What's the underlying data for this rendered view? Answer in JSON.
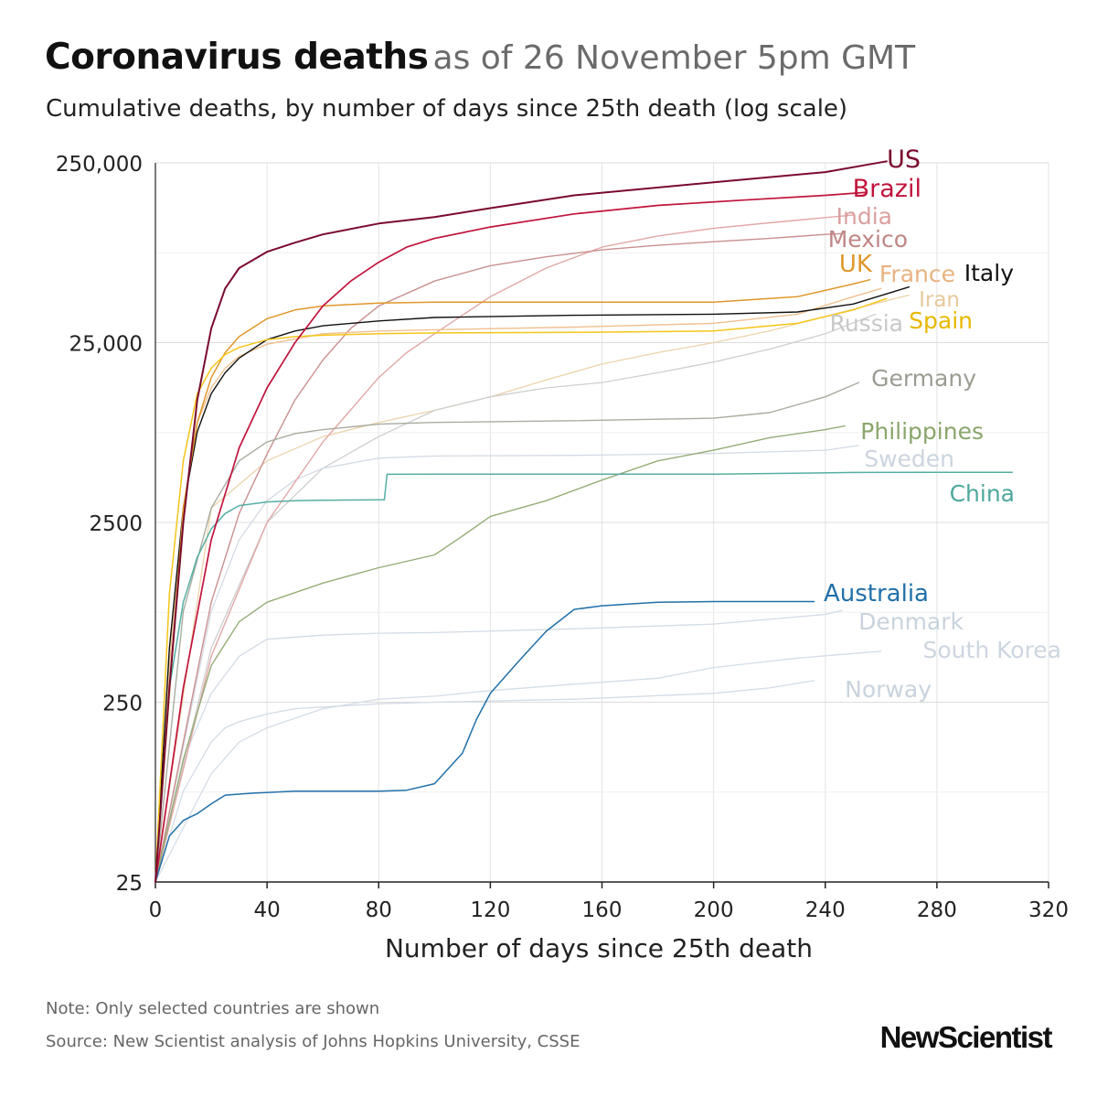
{
  "header": {
    "title_bold": "Coronavirus deaths",
    "title_light": "as of 26 November 5pm GMT",
    "subtitle": "Cumulative deaths, by number of days since 25th death (log scale)"
  },
  "footer": {
    "note": "Note: Only selected countries are shown",
    "source": "Source: New Scientist analysis of Johns Hopkins University, CSSE",
    "logo": "NewScientist"
  },
  "chart_data": {
    "type": "line",
    "title": "Coronavirus deaths as of 26 November 5pm GMT",
    "subtitle": "Cumulative deaths, by number of days since 25th death (log scale)",
    "xlabel": "Number of days since 25th death",
    "ylabel": "",
    "xscale": "linear",
    "yscale": "log",
    "xlim": [
      0,
      320
    ],
    "ylim": [
      25,
      250000
    ],
    "x_ticks": [
      0,
      40,
      80,
      120,
      160,
      200,
      240,
      280,
      320
    ],
    "x_tick_labels": [
      "0",
      "40",
      "80",
      "120",
      "160",
      "200",
      "240",
      "280",
      "320"
    ],
    "y_ticks": [
      25,
      250,
      2500,
      25000,
      250000
    ],
    "y_tick_labels": [
      "25",
      "250",
      "2500",
      "25,000",
      "250,000"
    ],
    "grid": true,
    "series": [
      {
        "name": "US",
        "color": "#7a0a2d",
        "label_color": "#7a0a2d",
        "weight": 2,
        "x": [
          0,
          5,
          10,
          15,
          20,
          25,
          30,
          40,
          50,
          60,
          80,
          100,
          120,
          150,
          200,
          240,
          262
        ],
        "y": [
          25,
          300,
          2500,
          12000,
          30000,
          50000,
          65000,
          80000,
          90000,
          100000,
          115000,
          125000,
          140000,
          165000,
          195000,
          222000,
          255000
        ]
      },
      {
        "name": "Brazil",
        "color": "#c0143c",
        "label_color": "#c0143c",
        "weight": 1.7,
        "x": [
          0,
          10,
          20,
          30,
          40,
          50,
          60,
          70,
          80,
          90,
          100,
          120,
          150,
          180,
          210,
          240,
          254
        ],
        "y": [
          25,
          300,
          2000,
          6500,
          14000,
          25000,
          40000,
          55000,
          70000,
          85000,
          95000,
          110000,
          130000,
          145000,
          155000,
          165000,
          171000
        ]
      },
      {
        "name": "India",
        "color": "#e2a7a7",
        "label_color": "#dba0a0",
        "weight": 1.4,
        "x": [
          0,
          20,
          40,
          60,
          80,
          90,
          100,
          120,
          140,
          160,
          180,
          200,
          220,
          240,
          250
        ],
        "y": [
          25,
          450,
          2500,
          7000,
          16000,
          22000,
          28000,
          45000,
          65000,
          85000,
          98000,
          108000,
          116000,
          124000,
          128000
        ]
      },
      {
        "name": "Mexico",
        "color": "#c98f8f",
        "label_color": "#c08585",
        "weight": 1.4,
        "x": [
          0,
          20,
          30,
          40,
          50,
          60,
          70,
          80,
          100,
          120,
          140,
          160,
          180,
          200,
          220,
          240,
          246
        ],
        "y": [
          25,
          900,
          2800,
          6000,
          12000,
          20000,
          30000,
          40000,
          55000,
          67000,
          75000,
          82000,
          87000,
          91000,
          95000,
          100000,
          101000
        ]
      },
      {
        "name": "UK",
        "color": "#e0972a",
        "label_color": "#e0972a",
        "weight": 1.5,
        "x": [
          0,
          10,
          15,
          20,
          25,
          30,
          40,
          50,
          60,
          80,
          100,
          150,
          200,
          230,
          250,
          256
        ],
        "y": [
          25,
          3000,
          9000,
          16000,
          22000,
          27000,
          34000,
          38000,
          40000,
          41500,
          42000,
          42000,
          42000,
          45000,
          53000,
          56000
        ]
      },
      {
        "name": "France",
        "color": "#f0c090",
        "label_color": "#e8b27f",
        "weight": 1.4,
        "x": [
          0,
          5,
          10,
          15,
          20,
          25,
          30,
          40,
          60,
          80,
          100,
          150,
          200,
          230,
          250,
          260
        ],
        "y": [
          25,
          400,
          3000,
          9000,
          14000,
          18000,
          21000,
          24500,
          28000,
          29000,
          29500,
          30500,
          32000,
          36000,
          45000,
          50000
        ]
      },
      {
        "name": "Italy",
        "color": "#111111",
        "label_color": "#111111",
        "weight": 1.4,
        "x": [
          0,
          5,
          10,
          15,
          20,
          25,
          30,
          40,
          50,
          60,
          80,
          100,
          150,
          200,
          230,
          250,
          270
        ],
        "y": [
          25,
          500,
          3000,
          8000,
          13000,
          17000,
          20500,
          26000,
          29000,
          31000,
          33000,
          34500,
          35500,
          36000,
          37000,
          41000,
          51000
        ]
      },
      {
        "name": "Iran",
        "color": "#ecd3aa",
        "label_color": "#e5c99c",
        "weight": 1.3,
        "x": [
          0,
          20,
          40,
          60,
          80,
          100,
          120,
          140,
          160,
          180,
          200,
          220,
          240,
          260,
          270
        ],
        "y": [
          25,
          3000,
          5500,
          7500,
          9000,
          10500,
          12500,
          15500,
          19000,
          22000,
          25000,
          29000,
          35000,
          42000,
          46000
        ]
      },
      {
        "name": "Spain",
        "color": "#f5c518",
        "label_color": "#e8b800",
        "weight": 1.5,
        "x": [
          0,
          5,
          10,
          15,
          20,
          25,
          30,
          40,
          50,
          60,
          80,
          100,
          150,
          200,
          230,
          250,
          262
        ],
        "y": [
          25,
          1000,
          5500,
          13000,
          18000,
          21500,
          23500,
          26000,
          27000,
          27500,
          28000,
          28300,
          28500,
          29000,
          32000,
          38000,
          44000
        ]
      },
      {
        "name": "Russia",
        "color": "#cfcfcf",
        "label_color": "#c8c8c8",
        "weight": 1.3,
        "x": [
          0,
          20,
          40,
          60,
          80,
          100,
          120,
          140,
          160,
          180,
          200,
          220,
          240,
          258
        ],
        "y": [
          25,
          500,
          2500,
          5000,
          7500,
          10500,
          12500,
          14000,
          15000,
          17000,
          19500,
          23000,
          28000,
          36000
        ]
      },
      {
        "name": "Germany",
        "color": "#a9aca0",
        "label_color": "#9a9d92",
        "weight": 1.4,
        "x": [
          0,
          10,
          20,
          30,
          40,
          50,
          60,
          80,
          100,
          150,
          200,
          220,
          240,
          252
        ],
        "y": [
          25,
          800,
          3000,
          5500,
          7000,
          7800,
          8200,
          8800,
          9000,
          9200,
          9500,
          10200,
          12500,
          15000
        ]
      },
      {
        "name": "Philippines",
        "color": "#95ad78",
        "label_color": "#8aa56c",
        "weight": 1.4,
        "x": [
          0,
          10,
          20,
          30,
          40,
          60,
          80,
          100,
          110,
          120,
          140,
          160,
          180,
          200,
          220,
          240,
          247
        ],
        "y": [
          25,
          120,
          400,
          700,
          900,
          1150,
          1400,
          1650,
          2100,
          2700,
          3300,
          4300,
          5500,
          6300,
          7400,
          8200,
          8600
        ]
      },
      {
        "name": "Sweden",
        "color": "#d3dae3",
        "label_color": "#ccd4de",
        "weight": 1.3,
        "x": [
          0,
          20,
          30,
          40,
          50,
          60,
          80,
          100,
          150,
          200,
          240,
          252
        ],
        "y": [
          25,
          800,
          2000,
          3300,
          4300,
          5000,
          5700,
          5850,
          5900,
          6050,
          6300,
          6700
        ]
      },
      {
        "name": "China",
        "color": "#55aea3",
        "label_color": "#4fa89c",
        "weight": 1.5,
        "x": [
          0,
          5,
          10,
          15,
          20,
          25,
          30,
          40,
          50,
          60,
          70,
          82,
          83,
          100,
          150,
          200,
          250,
          307
        ],
        "y": [
          25,
          300,
          900,
          1600,
          2300,
          2800,
          3100,
          3250,
          3300,
          3320,
          3330,
          3340,
          4630,
          4634,
          4634,
          4634,
          4740,
          4750
        ]
      },
      {
        "name": "Australia",
        "color": "#2270a8",
        "label_color": "#2270a8",
        "weight": 1.5,
        "x": [
          0,
          5,
          10,
          15,
          20,
          25,
          35,
          50,
          80,
          90,
          100,
          110,
          115,
          120,
          130,
          140,
          150,
          160,
          170,
          180,
          200,
          220,
          236
        ],
        "y": [
          25,
          45,
          55,
          60,
          68,
          76,
          78,
          80,
          80,
          81,
          88,
          130,
          200,
          280,
          420,
          620,
          820,
          860,
          880,
          900,
          907,
          907,
          907
        ]
      },
      {
        "name": "Denmark",
        "color": "#d3dbe4",
        "label_color": "#c9d3dd",
        "weight": 1.3,
        "x": [
          0,
          10,
          20,
          30,
          40,
          60,
          80,
          100,
          150,
          200,
          240,
          246
        ],
        "y": [
          25,
          120,
          280,
          450,
          560,
          590,
          605,
          610,
          640,
          680,
          770,
          810
        ]
      },
      {
        "name": "South Korea",
        "color": "#d5dde6",
        "label_color": "#cdd6e0",
        "weight": 1.3,
        "x": [
          0,
          10,
          20,
          30,
          40,
          60,
          80,
          100,
          120,
          150,
          180,
          200,
          230,
          260
        ],
        "y": [
          25,
          50,
          100,
          150,
          180,
          230,
          260,
          270,
          290,
          315,
          340,
          390,
          440,
          480
        ]
      },
      {
        "name": "Norway",
        "color": "#d3dbe4",
        "label_color": "#c9d3dd",
        "weight": 1.3,
        "x": [
          0,
          10,
          20,
          25,
          30,
          40,
          50,
          60,
          80,
          100,
          150,
          200,
          220,
          236
        ],
        "y": [
          25,
          80,
          150,
          180,
          195,
          215,
          230,
          235,
          245,
          250,
          260,
          280,
          300,
          330
        ]
      }
    ]
  }
}
